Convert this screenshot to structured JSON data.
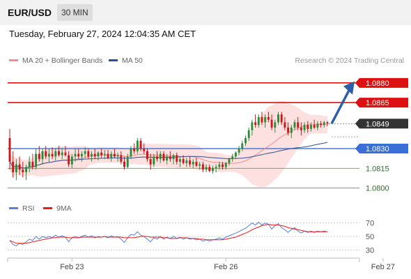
{
  "header": {
    "pair": "EUR/USD",
    "timeframe": "30 MIN"
  },
  "datetime": "Tuesday, February 27, 2024 12:04:35 AM CET",
  "legend": {
    "ma20": {
      "label": "MA 20 + Bollinger Bands",
      "color": "#f28b8b"
    },
    "ma50": {
      "label": "MA 50",
      "color": "#2e4f8f"
    },
    "rsi": {
      "label": "RSI",
      "color": "#5b7fd6"
    },
    "ma9": {
      "label": "9MA",
      "color": "#e02020"
    }
  },
  "watermark": "Research © 2024 Trading Central",
  "colors": {
    "bull": "#2e8b3a",
    "bear": "#c91818",
    "resistance": "#dd1111",
    "pivot": "#3a6fd8",
    "support": "#5aa05a",
    "current": "#333333",
    "arrow": "#2d5ea8",
    "band": "#fde0e0"
  },
  "chart_data": [
    {
      "type": "candlestick",
      "yrange": [
        1.0795,
        1.089
      ],
      "levels": [
        {
          "role": "resistance",
          "value": 1.088,
          "label": "1.0880"
        },
        {
          "role": "resistance",
          "value": 1.0865,
          "label": "1.0865"
        },
        {
          "role": "current",
          "value": 1.0849,
          "label": "1.0849"
        },
        {
          "role": "pivot",
          "value": 1.083,
          "label": "1.0830"
        },
        {
          "role": "support",
          "value": 1.0815,
          "label": "1.0815"
        },
        {
          "role": "support",
          "value": 1.08,
          "label": "1.0800"
        }
      ],
      "xticks": [
        {
          "label": "Feb 23",
          "index": 19
        },
        {
          "label": "Feb 26",
          "index": 66
        },
        {
          "label": "Feb 27",
          "index": 114
        }
      ],
      "candles": [
        [
          1.0838,
          1.0845,
          1.0814,
          1.082
        ],
        [
          1.082,
          1.0828,
          1.0808,
          1.0812
        ],
        [
          1.0812,
          1.0822,
          1.0806,
          1.0818
        ],
        [
          1.0818,
          1.0824,
          1.081,
          1.0814
        ],
        [
          1.0814,
          1.082,
          1.0808,
          1.0812
        ],
        [
          1.0812,
          1.0818,
          1.0806,
          1.0816
        ],
        [
          1.0816,
          1.0824,
          1.0812,
          1.082
        ],
        [
          1.082,
          1.0826,
          1.0814,
          1.0816
        ],
        [
          1.0816,
          1.083,
          1.0814,
          1.0826
        ],
        [
          1.0826,
          1.0832,
          1.082,
          1.0822
        ],
        [
          1.0822,
          1.083,
          1.0818,
          1.0828
        ],
        [
          1.0828,
          1.0832,
          1.0822,
          1.0824
        ],
        [
          1.0824,
          1.083,
          1.082,
          1.0826
        ],
        [
          1.0826,
          1.0831,
          1.0822,
          1.0824
        ],
        [
          1.0824,
          1.083,
          1.0821,
          1.0828
        ],
        [
          1.0828,
          1.0832,
          1.0824,
          1.0825
        ],
        [
          1.0825,
          1.083,
          1.0822,
          1.0827
        ],
        [
          1.0827,
          1.0832,
          1.0824,
          1.0825
        ],
        [
          1.0825,
          1.0828,
          1.0816,
          1.0818
        ],
        [
          1.0818,
          1.0826,
          1.0815,
          1.0824
        ],
        [
          1.0824,
          1.083,
          1.082,
          1.0826
        ],
        [
          1.0826,
          1.083,
          1.0822,
          1.0824
        ],
        [
          1.0824,
          1.0828,
          1.082,
          1.0826
        ],
        [
          1.0826,
          1.0831,
          1.0823,
          1.0828
        ],
        [
          1.0828,
          1.083,
          1.0822,
          1.0824
        ],
        [
          1.0824,
          1.0828,
          1.082,
          1.0826
        ],
        [
          1.0826,
          1.083,
          1.0822,
          1.0824
        ],
        [
          1.0824,
          1.0828,
          1.0821,
          1.0827
        ],
        [
          1.0827,
          1.083,
          1.0823,
          1.0825
        ],
        [
          1.0825,
          1.0829,
          1.0822,
          1.0826
        ],
        [
          1.0826,
          1.0829,
          1.0822,
          1.0823
        ],
        [
          1.0823,
          1.0828,
          1.082,
          1.0826
        ],
        [
          1.0826,
          1.083,
          1.0823,
          1.0824
        ],
        [
          1.0824,
          1.0827,
          1.082,
          1.0825
        ],
        [
          1.0825,
          1.0828,
          1.0818,
          1.082
        ],
        [
          1.082,
          1.0824,
          1.0814,
          1.0816
        ],
        [
          1.0816,
          1.0826,
          1.0815,
          1.0824
        ],
        [
          1.0824,
          1.0832,
          1.0822,
          1.083
        ],
        [
          1.083,
          1.0834,
          1.0826,
          1.0828
        ],
        [
          1.0828,
          1.0838,
          1.0826,
          1.0836
        ],
        [
          1.0836,
          1.0838,
          1.0828,
          1.083
        ],
        [
          1.083,
          1.0834,
          1.0826,
          1.0828
        ],
        [
          1.0828,
          1.083,
          1.082,
          1.0822
        ],
        [
          1.0822,
          1.0826,
          1.0814,
          1.0818
        ],
        [
          1.0818,
          1.0826,
          1.0816,
          1.0824
        ],
        [
          1.0824,
          1.0828,
          1.082,
          1.0822
        ],
        [
          1.0822,
          1.0828,
          1.0819,
          1.0826
        ],
        [
          1.0826,
          1.0828,
          1.082,
          1.0821
        ],
        [
          1.0821,
          1.0826,
          1.0818,
          1.0824
        ],
        [
          1.0824,
          1.0828,
          1.082,
          1.0822
        ],
        [
          1.0822,
          1.0826,
          1.0818,
          1.0825
        ],
        [
          1.0825,
          1.0827,
          1.0818,
          1.082
        ],
        [
          1.082,
          1.0824,
          1.0816,
          1.0822
        ],
        [
          1.0822,
          1.0825,
          1.0818,
          1.0819
        ],
        [
          1.0819,
          1.0823,
          1.0816,
          1.0821
        ],
        [
          1.0821,
          1.0824,
          1.0816,
          1.0818
        ],
        [
          1.0818,
          1.0822,
          1.0815,
          1.082
        ],
        [
          1.082,
          1.0823,
          1.0816,
          1.0817
        ],
        [
          1.0817,
          1.082,
          1.0814,
          1.0818
        ],
        [
          1.0818,
          1.082,
          1.0812,
          1.0814
        ],
        [
          1.0814,
          1.0818,
          1.0812,
          1.0816
        ],
        [
          1.0816,
          1.0818,
          1.0812,
          1.0813
        ],
        [
          1.0813,
          1.0817,
          1.0811,
          1.0815
        ],
        [
          1.0815,
          1.0818,
          1.0812,
          1.0816
        ],
        [
          1.0816,
          1.082,
          1.0814,
          1.0818
        ],
        [
          1.0818,
          1.082,
          1.0814,
          1.0816
        ],
        [
          1.0816,
          1.082,
          1.0814,
          1.0819
        ],
        [
          1.0819,
          1.0823,
          1.0817,
          1.0822
        ],
        [
          1.0822,
          1.0826,
          1.082,
          1.0824
        ],
        [
          1.0824,
          1.0828,
          1.0822,
          1.0827
        ],
        [
          1.0827,
          1.0832,
          1.0825,
          1.083
        ],
        [
          1.083,
          1.0836,
          1.0828,
          1.0834
        ],
        [
          1.0834,
          1.084,
          1.0832,
          1.0838
        ],
        [
          1.0838,
          1.0846,
          1.0836,
          1.0844
        ],
        [
          1.0844,
          1.0852,
          1.084,
          1.085
        ],
        [
          1.085,
          1.0856,
          1.0846,
          1.0848
        ],
        [
          1.0848,
          1.0856,
          1.0846,
          1.0854
        ],
        [
          1.0854,
          1.0858,
          1.0848,
          1.085
        ],
        [
          1.085,
          1.0856,
          1.0846,
          1.0854
        ],
        [
          1.0854,
          1.0858,
          1.085,
          1.0852
        ],
        [
          1.0852,
          1.0856,
          1.0844,
          1.0846
        ],
        [
          1.0846,
          1.0852,
          1.0842,
          1.085
        ],
        [
          1.085,
          1.0858,
          1.0848,
          1.0856
        ],
        [
          1.0856,
          1.0858,
          1.0848,
          1.085
        ],
        [
          1.085,
          1.0854,
          1.0844,
          1.0846
        ],
        [
          1.0846,
          1.085,
          1.084,
          1.0842
        ],
        [
          1.0842,
          1.0848,
          1.0838,
          1.0846
        ],
        [
          1.0846,
          1.0852,
          1.0844,
          1.085
        ],
        [
          1.085,
          1.0854,
          1.0844,
          1.0846
        ],
        [
          1.0846,
          1.085,
          1.084,
          1.0844
        ],
        [
          1.0844,
          1.085,
          1.0842,
          1.0848
        ],
        [
          1.0848,
          1.0851,
          1.0842,
          1.0845
        ],
        [
          1.0845,
          1.085,
          1.0843,
          1.0848
        ],
        [
          1.0848,
          1.0852,
          1.0845,
          1.0846
        ],
        [
          1.0846,
          1.0851,
          1.0844,
          1.0849
        ],
        [
          1.0849,
          1.0851,
          1.0846,
          1.0848
        ],
        [
          1.0848,
          1.0851,
          1.0846,
          1.085
        ],
        [
          1.085,
          1.0851,
          1.0847,
          1.0849
        ]
      ]
    },
    {
      "type": "line",
      "yrange": [
        20,
        80
      ],
      "reference_levels": [
        70,
        50,
        30
      ],
      "series": [
        {
          "name": "RSI",
          "values": [
            44,
            38,
            36,
            40,
            38,
            42,
            46,
            44,
            50,
            46,
            50,
            48,
            50,
            48,
            52,
            49,
            51,
            49,
            42,
            48,
            50,
            48,
            50,
            52,
            49,
            51,
            48,
            50,
            49,
            50,
            48,
            51,
            49,
            50,
            46,
            41,
            48,
            53,
            52,
            57,
            52,
            50,
            46,
            42,
            48,
            46,
            50,
            46,
            49,
            47,
            50,
            47,
            49,
            46,
            48,
            46,
            47,
            45,
            46,
            43,
            45,
            43,
            45,
            46,
            48,
            46,
            49,
            51,
            53,
            55,
            57,
            60,
            62,
            66,
            70,
            67,
            71,
            67,
            70,
            68,
            61,
            66,
            69,
            63,
            60,
            56,
            60,
            63,
            58,
            55,
            58,
            56,
            58,
            56,
            58,
            57,
            58,
            57
          ]
        },
        {
          "name": "9MA",
          "values": [
            44,
            42,
            40,
            40,
            40,
            40,
            41,
            42,
            43,
            44,
            45,
            46,
            47,
            48,
            48,
            49,
            49,
            49,
            48,
            48,
            48,
            48,
            49,
            49,
            49,
            49,
            49,
            49,
            49,
            50,
            49,
            49,
            49,
            49,
            49,
            48,
            48,
            48,
            48,
            49,
            50,
            50,
            50,
            49,
            49,
            49,
            49,
            48,
            48,
            47,
            47,
            47,
            48,
            48,
            48,
            47,
            47,
            47,
            46,
            46,
            45,
            45,
            45,
            45,
            45,
            45,
            46,
            47,
            48,
            49,
            51,
            53,
            55,
            57,
            60,
            62,
            64,
            66,
            67,
            68,
            67,
            67,
            67,
            66,
            65,
            63,
            62,
            61,
            60,
            59,
            58,
            57,
            57,
            57,
            57,
            57,
            57,
            57
          ]
        }
      ]
    }
  ]
}
